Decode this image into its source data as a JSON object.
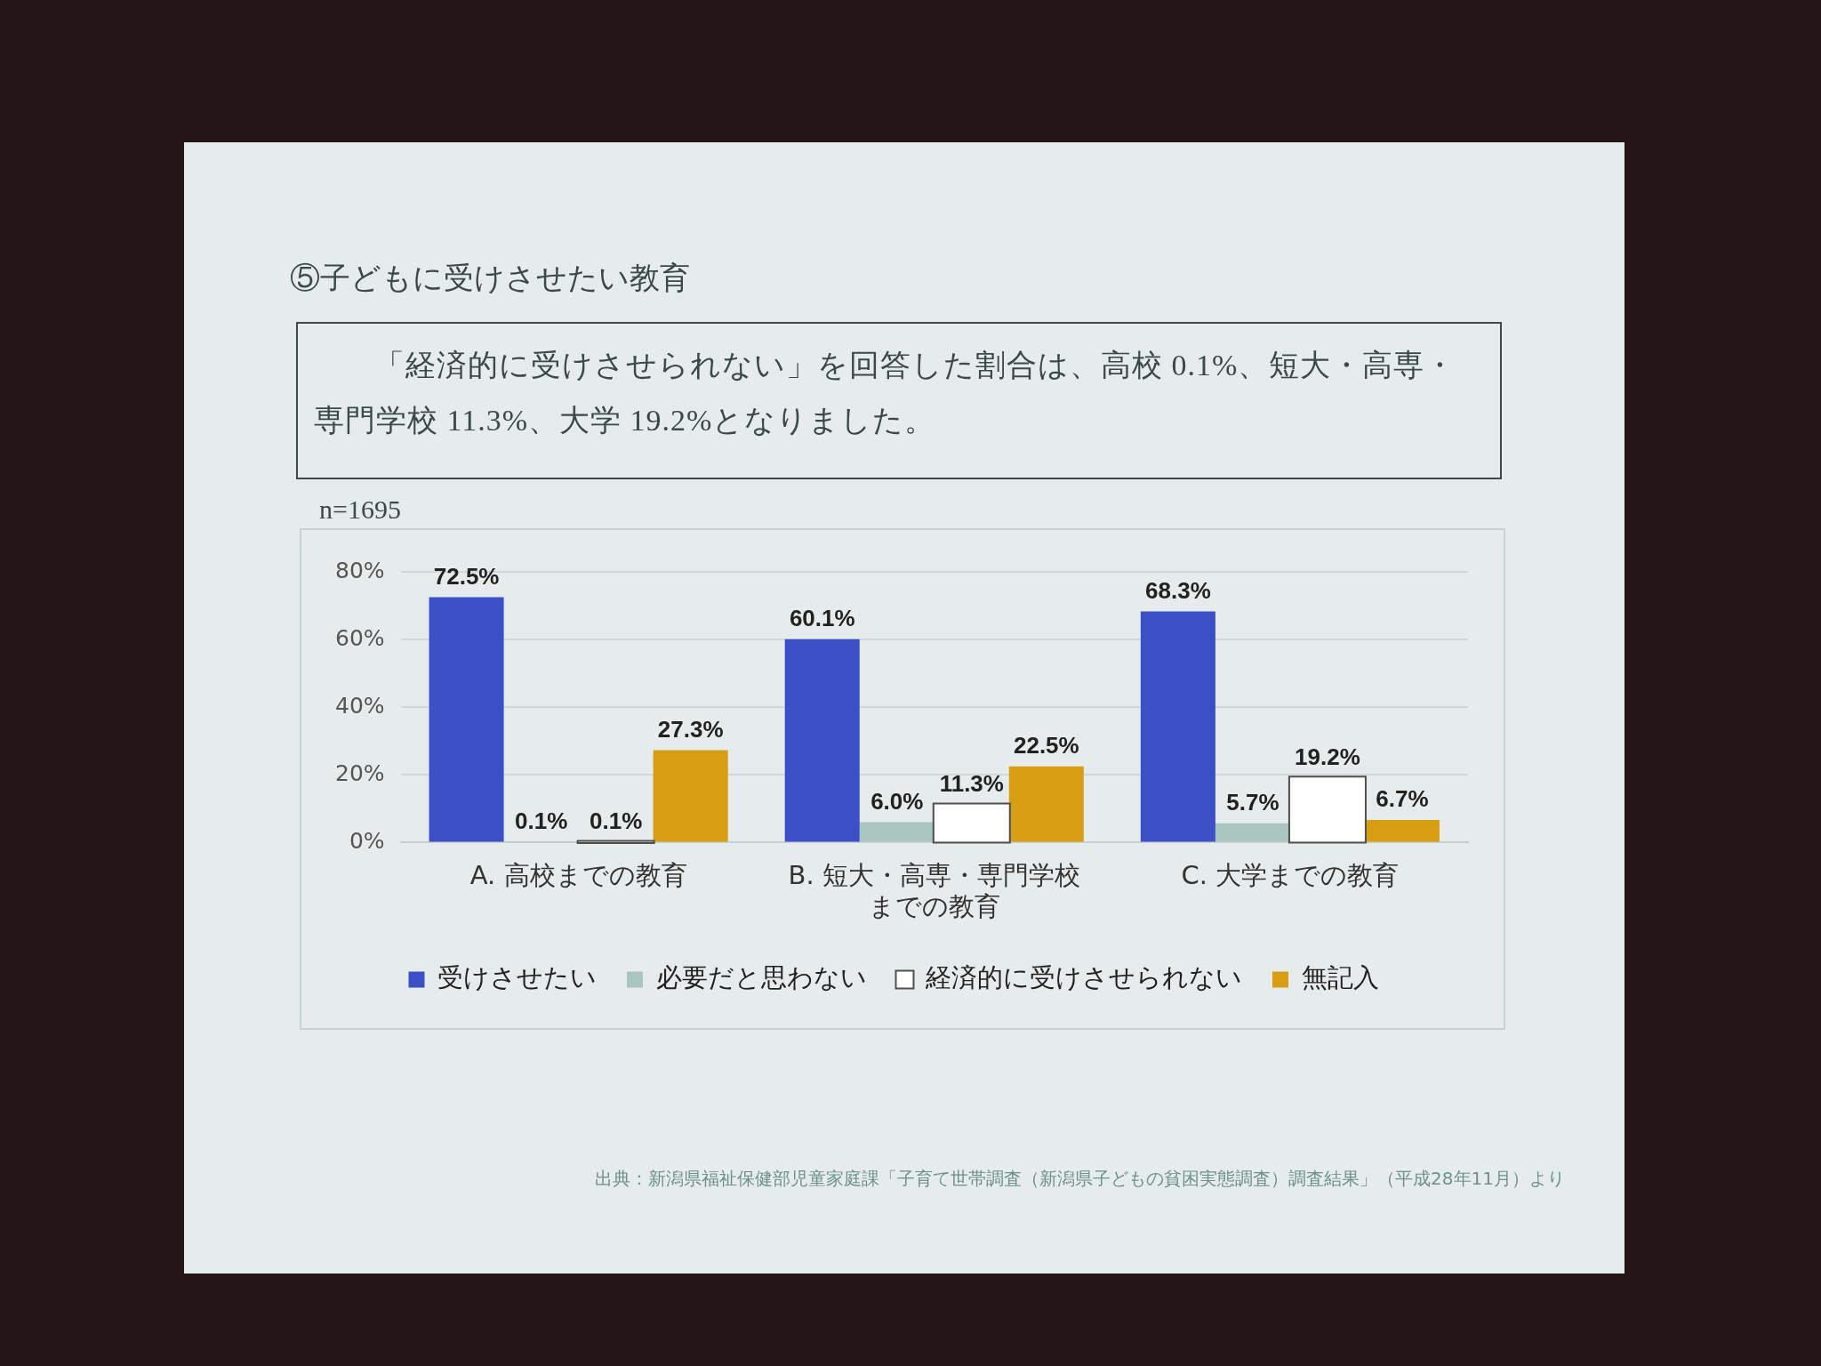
{
  "chart_data": {
    "type": "bar",
    "title": "⑤子どもに受けさせたい教育",
    "subtitle": "「経済的に受けさせられない」を回答した割合は、高校 0.1%、短大・高専・専門学校 11.3%、大学 19.2%となりました。",
    "annotations": [
      "n=1695",
      "出典：新潟県福祉保健部児童家庭課「子育て世帯調査（新潟県子どもの貧困実態調査）調査結果」（平成28年11月）より"
    ],
    "categories": [
      "A. 高校までの教育",
      "B. 短大・高専・専門学校までの教育",
      "C. 大学までの教育"
    ],
    "series": [
      {
        "name": "受けさせたい",
        "color": "#3d4fc6",
        "values": [
          72.5,
          60.1,
          68.3
        ],
        "value_labels": [
          "72.5%",
          "60.1%",
          "68.3%"
        ]
      },
      {
        "name": "必要だと思わない",
        "color": "#a9c5bf",
        "values": [
          0.1,
          6.0,
          5.7
        ],
        "value_labels": [
          "0.1%",
          "6.0%",
          "5.7%"
        ]
      },
      {
        "name": "経済的に受けさせられない",
        "color": "#ffffff",
        "values": [
          0.1,
          11.3,
          19.2
        ],
        "value_labels": [
          "0.1%",
          "11.3%",
          "19.2%"
        ]
      },
      {
        "name": "無記入",
        "color": "#d79e14",
        "values": [
          27.3,
          22.5,
          6.7
        ],
        "value_labels": [
          "27.3%",
          "22.5%",
          "6.7%"
        ]
      }
    ],
    "ylim": [
      0,
      80
    ],
    "yticks": [
      {
        "value": 0,
        "label": "0%"
      },
      {
        "value": 20,
        "label": "20%"
      },
      {
        "value": 40,
        "label": "40%"
      },
      {
        "value": 60,
        "label": "60%"
      },
      {
        "value": 80,
        "label": "80%"
      }
    ],
    "grid": "y",
    "legend": "bottom"
  }
}
